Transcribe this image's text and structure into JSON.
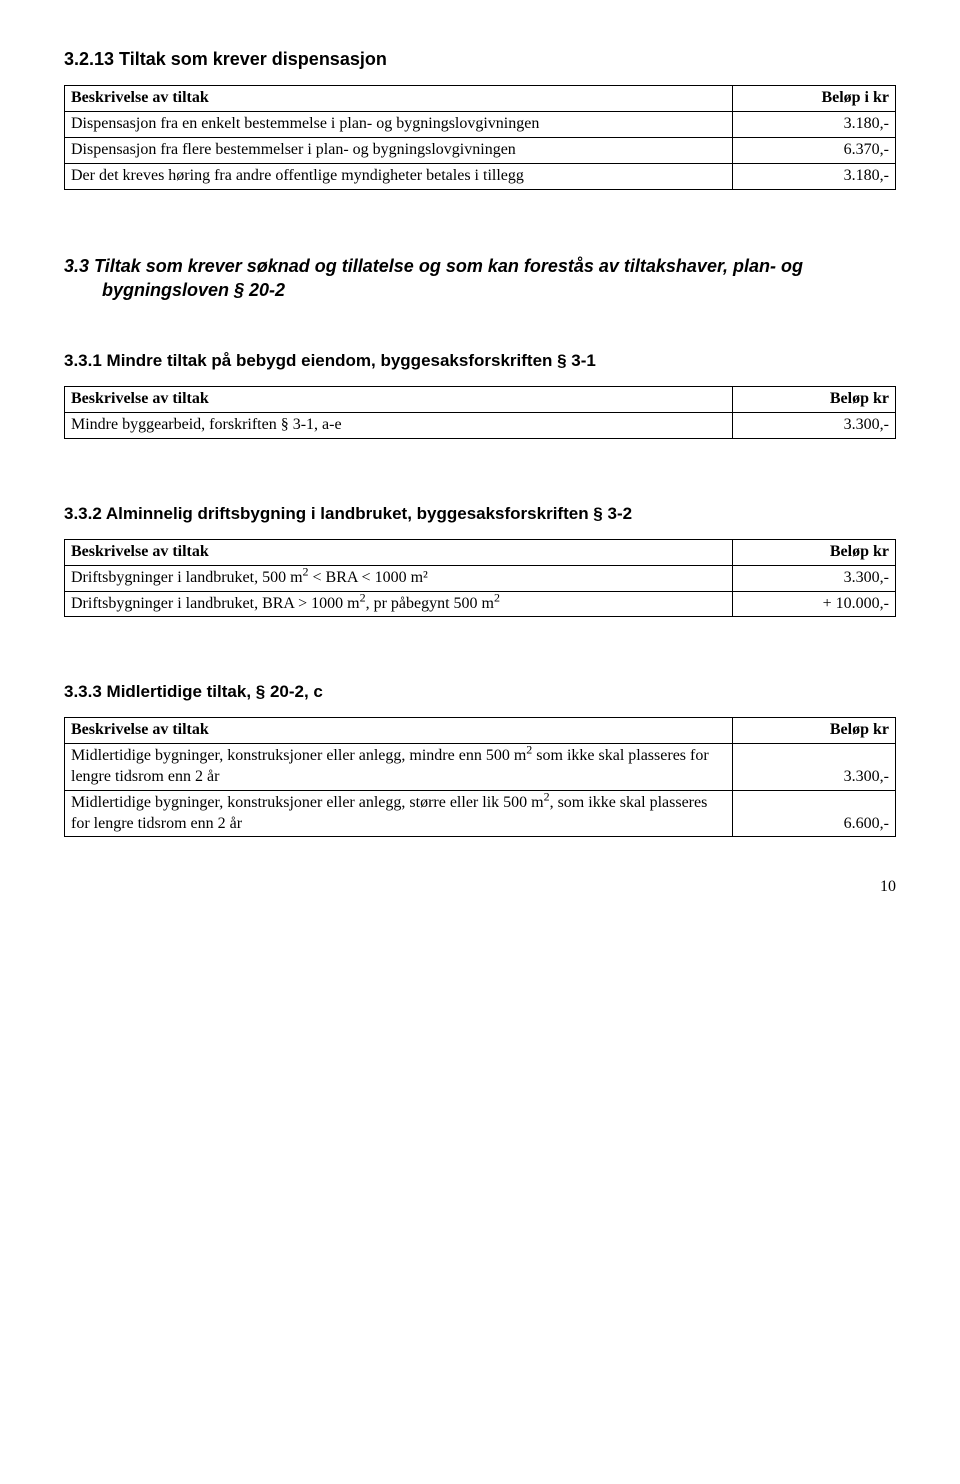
{
  "s1": {
    "title": "3.2.13 Tiltak som krever dispensasjon",
    "head_label": "Beskrivelse av tiltak",
    "head_amount": "Beløp i kr",
    "rows": [
      {
        "label": "Dispensasjon fra en enkelt bestemmelse i plan- og bygningslovgivningen",
        "amount": "3.180,-"
      },
      {
        "label": "Dispensasjon fra flere bestemmelser i plan- og bygningslovgivningen",
        "amount": "6.370,-"
      },
      {
        "label": "Der det kreves høring fra andre offentlige myndigheter betales i tillegg",
        "amount": "3.180,-"
      }
    ]
  },
  "s2": {
    "title": "3.3 Tiltak som krever søknad og tillatelse og som kan forestås av tiltakshaver, plan- og bygningsloven § 20-2"
  },
  "s3": {
    "title": "3.3.1 Mindre tiltak på bebygd eiendom, byggesaksforskriften § 3-1",
    "head_label": "Beskrivelse av tiltak",
    "head_amount": "Beløp kr",
    "rows": [
      {
        "label": "Mindre byggearbeid, forskriften § 3-1, a-e",
        "amount": "3.300,-"
      }
    ]
  },
  "s4": {
    "title": "3.3.2 Alminnelig driftsbygning i landbruket, byggesaksforskriften § 3-2",
    "head_label": "Beskrivelse av tiltak",
    "head_amount": "Beløp kr",
    "rows": [
      {
        "label_html": "Driftsbygninger i landbruket, 500 m<sup>2</sup> < BRA < 1000 m²",
        "amount": "3.300,-"
      },
      {
        "label_html": "Driftsbygninger i landbruket, BRA > 1000 m<sup>2</sup>, pr påbegynt 500 m<sup>2</sup>",
        "amount": "+ 10.000,-"
      }
    ]
  },
  "s5": {
    "title": "3.3.3 Midlertidige tiltak, § 20-2, c",
    "head_label": "Beskrivelse av tiltak",
    "head_amount": "Beløp kr",
    "rows": [
      {
        "label_html": "Midlertidige bygninger, konstruksjoner eller anlegg, mindre enn 500 m<sup>2</sup> som ikke skal plasseres for lengre tidsrom enn 2 år",
        "amount": "3.300,-"
      },
      {
        "label_html": "Midlertidige bygninger, konstruksjoner eller anlegg, større eller lik 500 m<sup>2</sup>, som ikke skal plasseres for lengre tidsrom enn 2 år",
        "amount": "6.600,-"
      }
    ]
  },
  "page_number": "10"
}
